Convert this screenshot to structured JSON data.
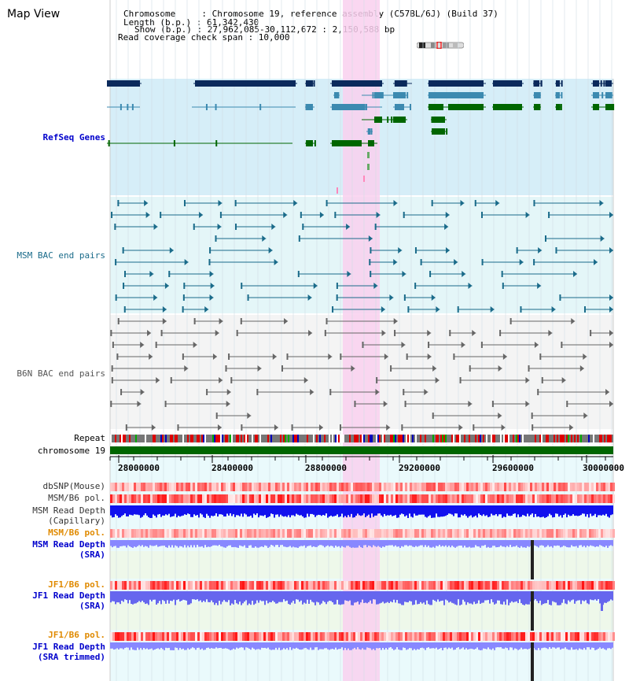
{
  "page": {
    "title": "Map View"
  },
  "info": {
    "chromosome": "Chromosome     : Chromosome 19, reference assembly (C57BL/6J) (Build 37)",
    "length": "Length (b.p.) : 61,342,430",
    "show": "Show (b.p.) : 27,962,085-30,112,672 : 2,150,588 bp",
    "coverage": "Read coverage check span : 10,000"
  },
  "tracks": {
    "refseq": "RefSeq Genes",
    "msm_bac": "MSM BAC end pairs",
    "b6n_bac": "B6N BAC end pairs",
    "repeat": "Repeat",
    "chromosome": "chromosome 19",
    "dbsnp": "dbSNP(Mouse)",
    "msm_pol": "MSM/B6 pol.",
    "msm_depth_cap_1": "MSM Read Depth",
    "msm_depth_cap_2": "(Capillary)",
    "msm_pol2": "MSM/B6 pol.",
    "msm_depth_sra_1": "MSM Read Depth",
    "msm_depth_sra_2": "(SRA)",
    "jf1_pol": "JF1/B6 pol.",
    "jf1_depth_sra_1": "JF1 Read Depth",
    "jf1_depth_sra_2": "(SRA)",
    "jf1_pol2": "JF1/B6 pol.",
    "jf1_depth_trim_1": "JF1 Read Depth",
    "jf1_depth_trim_2": "(SRA trimmed)"
  },
  "axis": {
    "ticks": [
      "28000000",
      "28400000",
      "28800000",
      "29200000",
      "29600000",
      "30000000"
    ]
  },
  "colors": {
    "refseq_bg": "#d6eef8",
    "msm_bg": "#e4f6f8",
    "b6n_bg": "#f4f4f4",
    "highlight": "#f9d0ef",
    "gene_dark": "#0b2a5c",
    "gene_mid": "#3c8ab0",
    "gene_green": "#006600",
    "chromosome_bar": "#006600"
  }
}
